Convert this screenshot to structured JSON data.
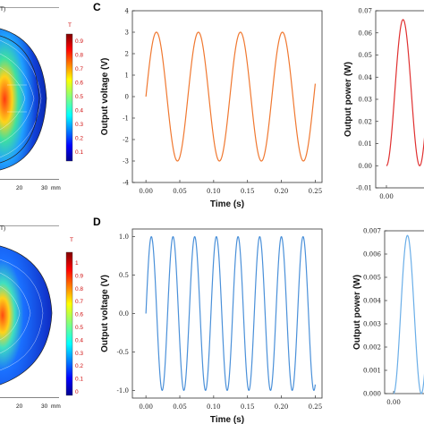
{
  "panel_labels": {
    "c": "C",
    "d": "D"
  },
  "colorbar": {
    "unit": "T",
    "top_ticks": [
      "0.9",
      "0.8",
      "0.7",
      "0.6",
      "0.5",
      "0.4",
      "0.3",
      "0.2",
      "0.1"
    ],
    "bottom_ticks": [
      "1",
      "0.9",
      "0.8",
      "0.7",
      "0.6",
      "0.5",
      "0.4",
      "0.3",
      "0.2",
      "0.1",
      "0"
    ]
  },
  "field_maps": {
    "top_axis": [
      "20",
      "30",
      "mm"
    ],
    "bottom_axis": [
      "20",
      "30",
      "mm"
    ]
  },
  "chart_data": [
    {
      "id": "voltage_c",
      "type": "line",
      "xlabel": "Time (s)",
      "ylabel": "Output voltage (V)",
      "xlim": [
        -0.02,
        0.26
      ],
      "ylim": [
        -4,
        4
      ],
      "xticks": [
        "0.00",
        "0.05",
        "0.10",
        "0.15",
        "0.20",
        "0.25"
      ],
      "yticks": [
        "4",
        "3",
        "2",
        "1",
        "0",
        "-1",
        "-2",
        "-3",
        "-4"
      ],
      "series": [
        {
          "color": "#f07830",
          "function": "3*sin(2*pi*t/0.062)",
          "t_range": [
            0,
            0.25
          ],
          "amplitude": 3.0,
          "period": 0.062
        }
      ]
    },
    {
      "id": "power_c",
      "type": "line",
      "xlabel": "",
      "ylabel": "Output power (W)",
      "xlim": [
        -0.01,
        0.04
      ],
      "ylim": [
        -0.01,
        0.07
      ],
      "xticks": [
        "0.00"
      ],
      "yticks": [
        "0.07",
        "0.06",
        "0.05",
        "0.04",
        "0.03",
        "0.02",
        "0.01",
        "0.00",
        "-0.01"
      ],
      "series": [
        {
          "color": "#e03030",
          "peak": 0.066,
          "visible_t_range": [
            0,
            0.04
          ]
        }
      ]
    },
    {
      "id": "voltage_d",
      "type": "line",
      "xlabel": "Time (s)",
      "ylabel": "Output voltage (V)",
      "xlim": [
        -0.02,
        0.26
      ],
      "ylim": [
        -1.1,
        1.1
      ],
      "xticks": [
        "0.00",
        "0.05",
        "0.10",
        "0.15",
        "0.20",
        "0.25"
      ],
      "yticks": [
        "1.0",
        "0.5",
        "0.0",
        "-0.5",
        "-1.0"
      ],
      "series": [
        {
          "color": "#4a90d9",
          "function": "sin(2*pi*t/0.032)",
          "t_range": [
            0,
            0.25
          ],
          "amplitude": 1.0,
          "period": 0.032
        }
      ]
    },
    {
      "id": "power_d",
      "type": "line",
      "xlabel": "",
      "ylabel": "Output power (W)",
      "xlim": [
        -0.01,
        0.04
      ],
      "ylim": [
        0,
        0.007
      ],
      "xticks": [
        "0.00"
      ],
      "yticks": [
        "0.007",
        "0.006",
        "0.005",
        "0.004",
        "0.003",
        "0.002",
        "0.001",
        "0.000"
      ],
      "series": [
        {
          "color": "#6aaee8",
          "peak": 0.0068,
          "visible_t_range": [
            0,
            0.04
          ]
        }
      ]
    }
  ]
}
